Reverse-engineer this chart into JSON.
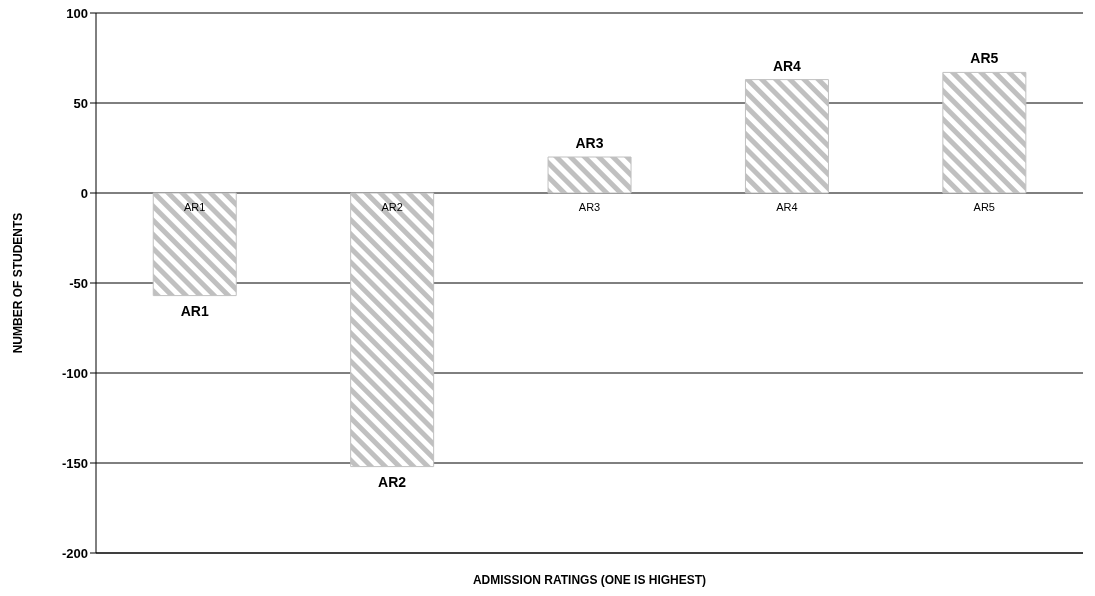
{
  "chart_data": {
    "type": "bar",
    "xlabel": "ADMISSION RATINGS (ONE IS HIGHEST)",
    "ylabel": "NUMBER OF STUDENTS",
    "categories": [
      "AR1",
      "AR2",
      "AR3",
      "AR4",
      "AR5"
    ],
    "values": [
      -57,
      -152,
      20,
      63,
      67
    ],
    "color": "#c0c0c0",
    "ylim": [
      -200,
      100
    ],
    "yticks": [
      -200,
      -150,
      -100,
      -50,
      0,
      50,
      100
    ],
    "grid": "y",
    "annotations": [
      {
        "text": "AR1",
        "x": "AR1",
        "y": -57
      },
      {
        "text": "AR2",
        "x": "AR2",
        "y": -152
      },
      {
        "text": "AR3",
        "x": "AR3",
        "y": 20
      },
      {
        "text": "AR4",
        "x": "AR4",
        "y": 63
      },
      {
        "text": "AR5",
        "x": "AR5",
        "y": 67
      }
    ]
  }
}
